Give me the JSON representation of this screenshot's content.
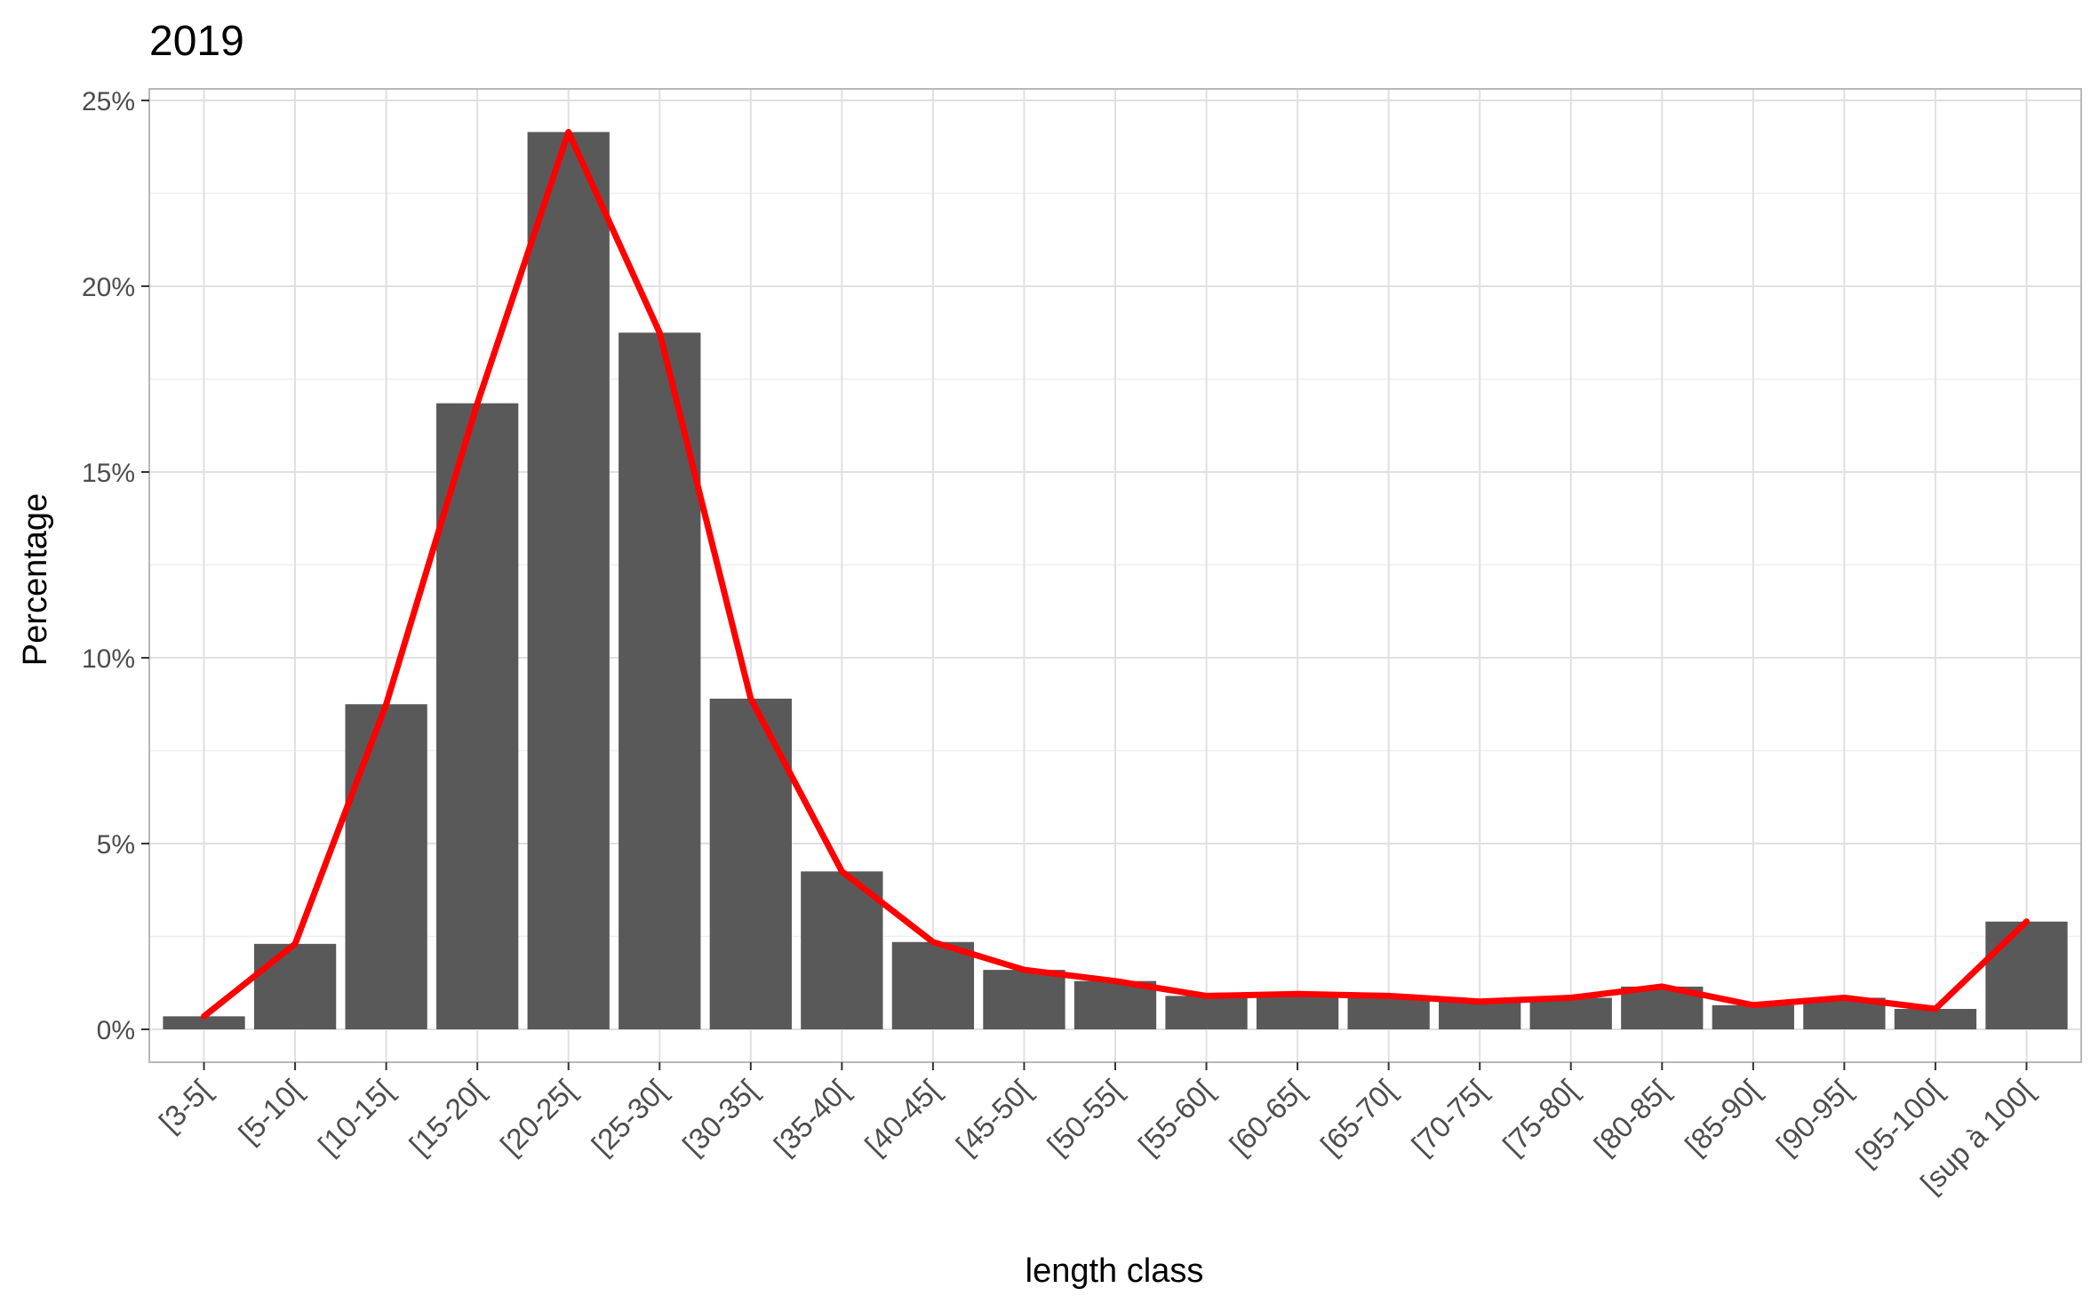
{
  "chart_data": {
    "type": "bar",
    "title": "2019",
    "xlabel": "length class",
    "ylabel": "Percentage",
    "ylim": [
      0,
      25
    ],
    "yticks": [
      0,
      5,
      10,
      15,
      20,
      25
    ],
    "ytick_suffix": "%",
    "grid": true,
    "legend": "none",
    "categories": [
      "[3-5[",
      "[5-10[",
      "[10-15[",
      "[15-20[",
      "[20-25[",
      "[25-30[",
      "[30-35[",
      "[35-40[",
      "[40-45[",
      "[45-50[",
      "[50-55[",
      "[55-60[",
      "[60-65[",
      "[65-70[",
      "[70-75[",
      "[75-80[",
      "[80-85[",
      "[85-90[",
      "[90-95[",
      "[95-100[",
      "[sup à 100["
    ],
    "series": [
      {
        "type": "bar",
        "color": "#595959",
        "values": [
          0.35,
          2.3,
          8.75,
          16.85,
          24.15,
          18.75,
          8.9,
          4.25,
          2.35,
          1.6,
          1.3,
          0.9,
          0.95,
          0.9,
          0.75,
          0.85,
          1.15,
          0.65,
          0.85,
          0.55,
          2.9
        ]
      },
      {
        "type": "line",
        "color": "#ff0000",
        "values": [
          0.35,
          2.3,
          8.75,
          16.85,
          24.15,
          18.75,
          8.9,
          4.25,
          2.35,
          1.6,
          1.3,
          0.9,
          0.95,
          0.9,
          0.75,
          0.85,
          1.15,
          0.65,
          0.85,
          0.55,
          2.9
        ]
      }
    ]
  }
}
